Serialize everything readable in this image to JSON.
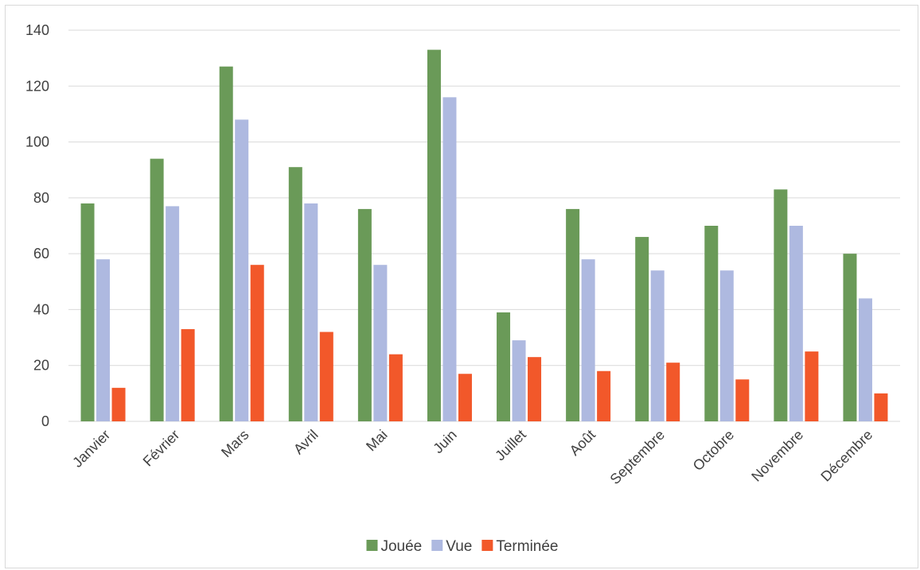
{
  "chart_data": {
    "type": "bar",
    "title": "",
    "xlabel": "",
    "ylabel": "",
    "categories": [
      "Janvier",
      "Février",
      "Mars",
      "Avril",
      "Mai",
      "Juin",
      "Juillet",
      "Août",
      "Septembre",
      "Octobre",
      "Novembre",
      "Décembre"
    ],
    "series": [
      {
        "name": "Jouée",
        "color": "#6a9a58",
        "values": [
          78,
          94,
          127,
          91,
          76,
          133,
          39,
          76,
          66,
          70,
          83,
          60
        ]
      },
      {
        "name": "Vue",
        "color": "#aeb9e0",
        "values": [
          58,
          77,
          108,
          78,
          56,
          116,
          29,
          58,
          54,
          54,
          70,
          44
        ]
      },
      {
        "name": "Terminée",
        "color": "#f2582a",
        "values": [
          12,
          33,
          56,
          32,
          24,
          17,
          23,
          18,
          21,
          15,
          25,
          10
        ]
      }
    ],
    "ylim": [
      0,
      140
    ],
    "yticks": [
      0,
      20,
      40,
      60,
      80,
      100,
      120,
      140
    ],
    "grid": true,
    "legend_position": "bottom",
    "xtick_rotation": -45
  }
}
